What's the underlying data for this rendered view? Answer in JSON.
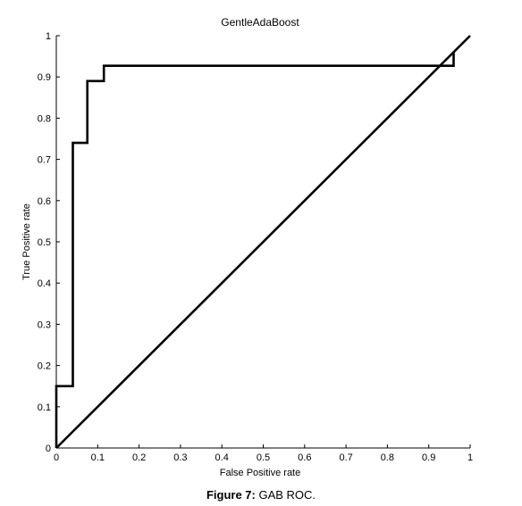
{
  "chart_data": {
    "type": "line",
    "title": "GentleAdaBoost",
    "xlabel": "False Positive rate",
    "ylabel": "True Positive rate",
    "xlim": [
      0,
      1
    ],
    "ylim": [
      0,
      1
    ],
    "xticks": [
      "0",
      "0.1",
      "0.2",
      "0.3",
      "0.4",
      "0.5",
      "0.6",
      "0.7",
      "0.8",
      "0.9",
      "1"
    ],
    "yticks": [
      "0",
      "0.1",
      "0.2",
      "0.3",
      "0.4",
      "0.5",
      "0.6",
      "0.7",
      "0.8",
      "0.9",
      "1"
    ],
    "grid": false,
    "series": [
      {
        "x": [
          0,
          0,
          0.04,
          0.04,
          0.075,
          0.075,
          0.115,
          0.115,
          0.96,
          0.96
        ],
        "y": [
          0,
          0.15,
          0.15,
          0.74,
          0.74,
          0.89,
          0.89,
          0.927,
          0.927,
          0.96
        ],
        "color": "#000000"
      },
      {
        "x": [
          0,
          1
        ],
        "y": [
          0,
          1
        ],
        "color": "#000000"
      }
    ]
  },
  "caption": {
    "label": "Figure 7:",
    "text": " GAB ROC."
  }
}
